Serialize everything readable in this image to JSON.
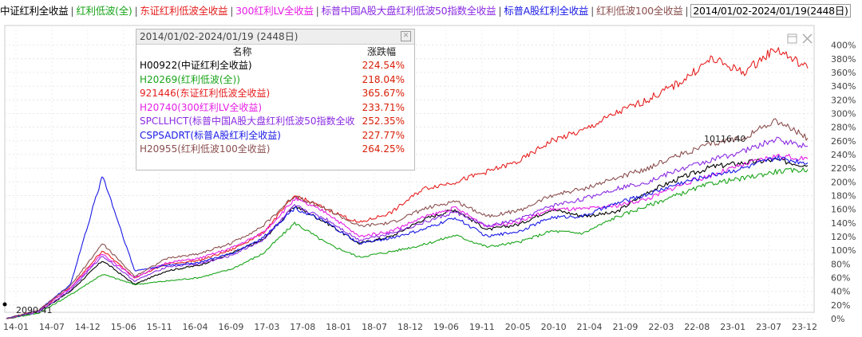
{
  "header": {
    "items": [
      {
        "label": "中证红利全收益",
        "color": "#000000"
      },
      {
        "label": "红利低波(全)",
        "color": "#1aa41a"
      },
      {
        "label": "东证红利低波全收益",
        "color": "#e62020"
      },
      {
        "label": "300红利LV全收益",
        "color": "#e61ee6"
      },
      {
        "label": "标普中国A股大盘红利低波50指数全收益",
        "color": "#8a2be2"
      },
      {
        "label": "标普A股红利全收益",
        "color": "#1a1ae6"
      },
      {
        "label": "红利低波100全收益",
        "color": "#8b4f4f"
      }
    ],
    "range": "2014/01/02-2024/01/19(2448日)"
  },
  "panel": {
    "title": "2014/01/02-2024/01/19 (2448日)",
    "col_name": "名称",
    "col_change": "涨跌幅",
    "rows": [
      {
        "name": "H00922(中证红利全收益)",
        "change": "224.54%",
        "color": "#000000"
      },
      {
        "name": "H20269(红利低波(全))",
        "change": "218.04%",
        "color": "#1aa41a"
      },
      {
        "name": "921446(东证红利低波全收益)",
        "change": "365.67%",
        "color": "#e62020"
      },
      {
        "name": "H20740(300红利LV全收益)",
        "change": "233.71%",
        "color": "#e61ee6"
      },
      {
        "name": "SPCLLHCT(标普中国A股大盘红利低波50指数全收",
        "change": "252.35%",
        "color": "#8a2be2"
      },
      {
        "name": "CSPSADRT(标普A股红利全收益)",
        "change": "227.77%",
        "color": "#1a1ae6"
      },
      {
        "name": "H20955(红利低波100全收益)",
        "change": "264.25%",
        "color": "#8b4f4f"
      }
    ]
  },
  "chart_data": {
    "type": "line",
    "x_ticks": [
      "14-01",
      "14-07",
      "14-12",
      "15-06",
      "15-11",
      "16-04",
      "16-09",
      "17-03",
      "17-08",
      "18-01",
      "18-07",
      "18-12",
      "19-06",
      "19-11",
      "20-05",
      "20-10",
      "21-04",
      "21-09",
      "22-03",
      "22-08",
      "23-01",
      "23-07",
      "23-12"
    ],
    "y_ticks": [
      "0%",
      "20%",
      "40%",
      "60%",
      "80%",
      "100%",
      "120%",
      "140%",
      "160%",
      "180%",
      "200%",
      "220%",
      "240%",
      "260%",
      "280%",
      "300%",
      "320%",
      "340%",
      "360%",
      "380%",
      "400%"
    ],
    "ylim": [
      0,
      410
    ],
    "annotations": {
      "max_label": "10116.40",
      "min_label": "2090.41"
    },
    "series": [
      {
        "key": "black",
        "color": "#000000",
        "values": [
          0,
          10,
          40,
          85,
          50,
          70,
          78,
          95,
          115,
          165,
          140,
          110,
          120,
          145,
          160,
          130,
          138,
          160,
          150,
          155,
          185,
          205,
          222,
          228,
          232,
          224
        ]
      },
      {
        "key": "green",
        "color": "#1aa41a",
        "values": [
          0,
          8,
          35,
          65,
          50,
          55,
          60,
          72,
          95,
          140,
          110,
          90,
          98,
          108,
          122,
          105,
          112,
          128,
          125,
          148,
          165,
          182,
          198,
          205,
          215,
          218
        ]
      },
      {
        "key": "red",
        "color": "#e62020",
        "values": [
          0,
          12,
          45,
          100,
          60,
          80,
          85,
          100,
          125,
          180,
          160,
          140,
          155,
          190,
          200,
          215,
          230,
          260,
          275,
          300,
          320,
          345,
          380,
          360,
          395,
          366
        ]
      },
      {
        "key": "magenta",
        "color": "#e61ee6",
        "values": [
          0,
          12,
          45,
          95,
          60,
          82,
          88,
          103,
          125,
          175,
          155,
          120,
          128,
          148,
          162,
          135,
          142,
          160,
          160,
          165,
          175,
          195,
          210,
          225,
          238,
          234
        ]
      },
      {
        "key": "purple",
        "color": "#8a2be2",
        "values": [
          0,
          10,
          42,
          92,
          55,
          76,
          80,
          92,
          115,
          165,
          145,
          115,
          125,
          140,
          156,
          135,
          145,
          165,
          175,
          190,
          200,
          218,
          232,
          245,
          262,
          252
        ]
      },
      {
        "key": "blue",
        "color": "#1a1ae6",
        "values": [
          0,
          12,
          50,
          210,
          70,
          78,
          82,
          95,
          118,
          162,
          140,
          110,
          118,
          130,
          148,
          120,
          128,
          148,
          150,
          168,
          182,
          198,
          210,
          220,
          235,
          228
        ]
      },
      {
        "key": "brown",
        "color": "#8b4f4f",
        "values": [
          0,
          12,
          48,
          110,
          62,
          88,
          95,
          110,
          135,
          180,
          160,
          135,
          140,
          160,
          172,
          150,
          158,
          180,
          190,
          205,
          220,
          240,
          255,
          265,
          290,
          264
        ]
      }
    ]
  }
}
